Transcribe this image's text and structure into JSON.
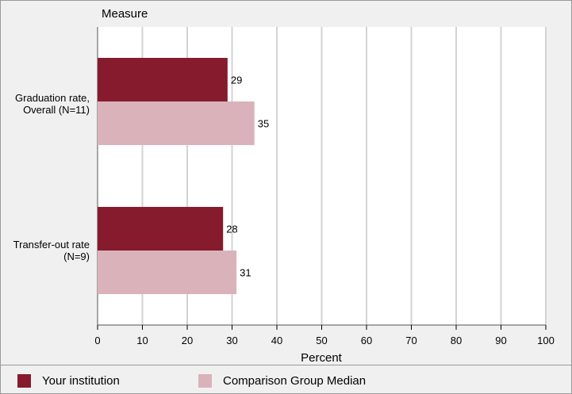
{
  "chart_data": {
    "type": "bar",
    "orientation": "horizontal",
    "y_axis_title": "Measure",
    "xlabel": "Percent",
    "xlim": [
      0,
      100
    ],
    "x_ticks": [
      0,
      10,
      20,
      30,
      40,
      50,
      60,
      70,
      80,
      90,
      100
    ],
    "grid": true,
    "categories": [
      {
        "line1": "Graduation rate,",
        "line2": "Overall (N=11)"
      },
      {
        "line1": "Transfer-out rate",
        "line2": "(N=9)"
      }
    ],
    "series": [
      {
        "name": "Your institution",
        "color": "#861b2d",
        "values": [
          29,
          28
        ]
      },
      {
        "name": "Comparison Group Median",
        "color": "#d9b3b9",
        "values": [
          35,
          31
        ]
      }
    ],
    "legend_placement": "bottom"
  }
}
